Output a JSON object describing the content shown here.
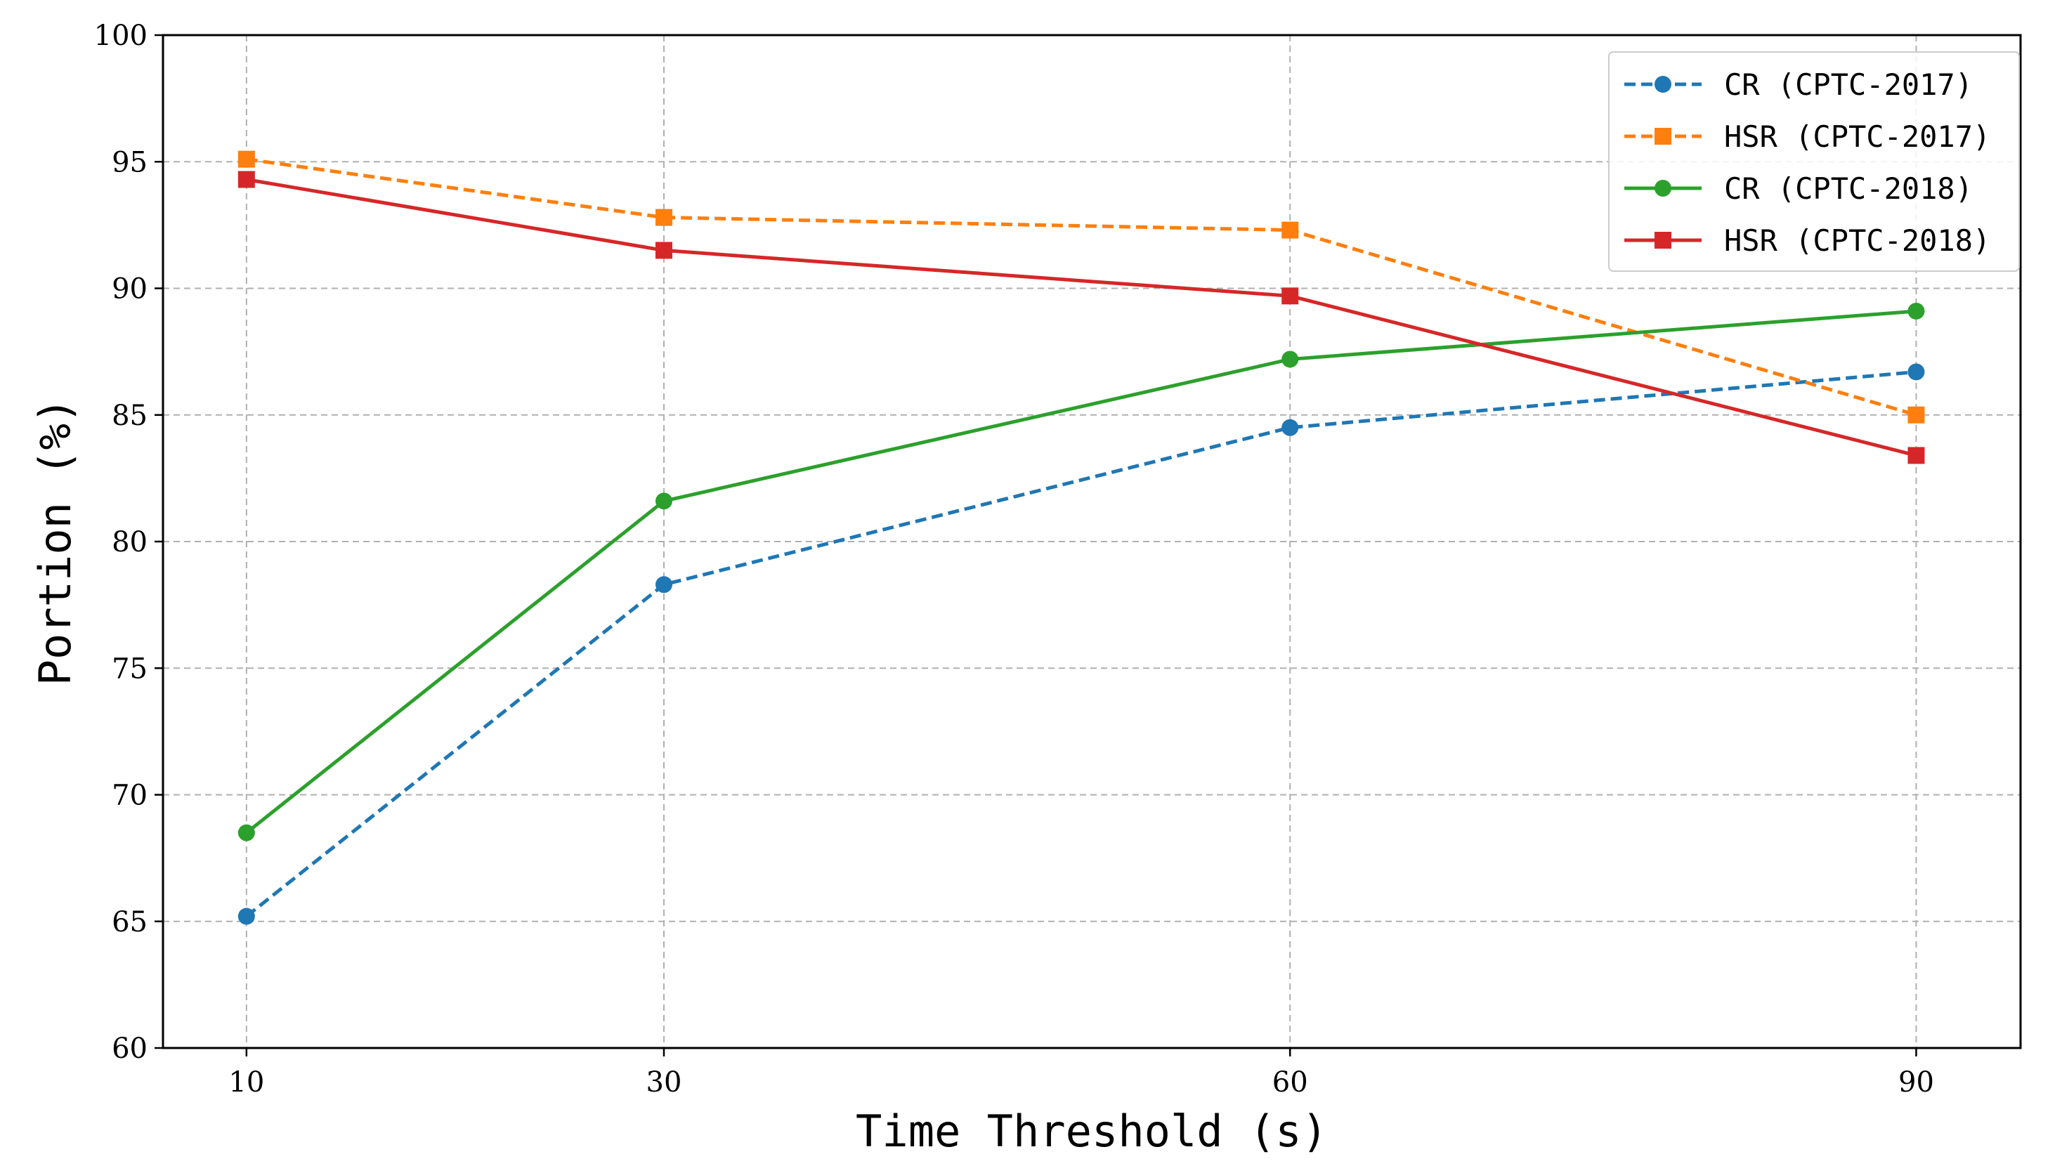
{
  "chart_data": {
    "type": "line",
    "x": [
      10,
      30,
      60,
      90
    ],
    "xticks": [
      "10",
      "30",
      "60",
      "90"
    ],
    "yticks": [
      "60",
      "65",
      "70",
      "75",
      "80",
      "85",
      "90",
      "95",
      "100"
    ],
    "xlim": [
      6,
      95
    ],
    "ylim": [
      60,
      100
    ],
    "xlabel": "Time Threshold (s)",
    "ylabel": "Portion (%)",
    "grid": true,
    "legend_position": "top-right",
    "series": [
      {
        "name": "CR (CPTC-2017)",
        "values": [
          65.2,
          78.3,
          84.5,
          86.7
        ],
        "color": "#1f77b4",
        "line": "dashed",
        "marker": "circle"
      },
      {
        "name": "HSR (CPTC-2017)",
        "values": [
          95.1,
          92.8,
          92.3,
          85.0
        ],
        "color": "#ff7f0e",
        "line": "dashed",
        "marker": "square"
      },
      {
        "name": "CR (CPTC-2018)",
        "values": [
          68.5,
          81.6,
          87.2,
          89.1
        ],
        "color": "#2ca02c",
        "line": "solid",
        "marker": "circle"
      },
      {
        "name": "HSR (CPTC-2018)",
        "values": [
          94.3,
          91.5,
          89.7,
          83.4
        ],
        "color": "#d62728",
        "line": "solid",
        "marker": "square"
      }
    ]
  }
}
